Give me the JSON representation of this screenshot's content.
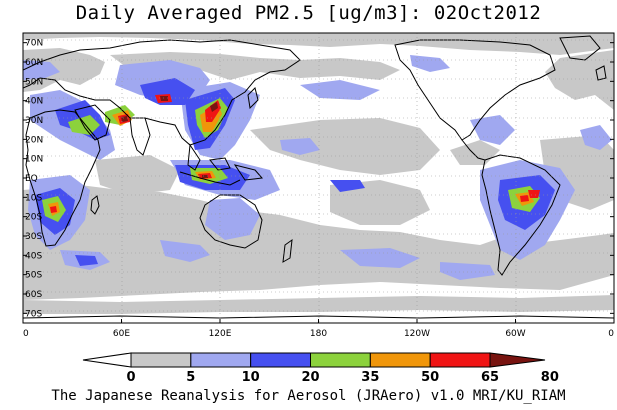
{
  "title": "Daily Averaged PM2.5 [ug/m3]: 02Oct2012",
  "credit": "The Japanese Reanalysis for Aerosol (JRAero) v1.0 MRI/KU_RIAM",
  "map": {
    "projection": "equirectangular",
    "lon_range": [
      0,
      360
    ],
    "lat_range": [
      -75,
      75
    ],
    "grid": "dotted",
    "lat_ticks": [
      {
        "lat": 70,
        "label": "70N"
      },
      {
        "lat": 60,
        "label": "60N"
      },
      {
        "lat": 50,
        "label": "50N"
      },
      {
        "lat": 40,
        "label": "40N"
      },
      {
        "lat": 30,
        "label": "30N"
      },
      {
        "lat": 20,
        "label": "20N"
      },
      {
        "lat": 10,
        "label": "10N"
      },
      {
        "lat": 0,
        "label": "EQ"
      },
      {
        "lat": -10,
        "label": "10S"
      },
      {
        "lat": -20,
        "label": "20S"
      },
      {
        "lat": -30,
        "label": "30S"
      },
      {
        "lat": -40,
        "label": "40S"
      },
      {
        "lat": -50,
        "label": "50S"
      },
      {
        "lat": -60,
        "label": "60S"
      },
      {
        "lat": -70,
        "label": "70S"
      }
    ],
    "lon_ticks": [
      {
        "lon": 0,
        "label": "0"
      },
      {
        "lon": 60,
        "label": "60E"
      },
      {
        "lon": 120,
        "label": "120E"
      },
      {
        "lon": 180,
        "label": "180"
      },
      {
        "lon": 240,
        "label": "120W"
      },
      {
        "lon": 300,
        "label": "60W"
      },
      {
        "lon": 360,
        "label": "0"
      }
    ]
  },
  "colorbar": {
    "levels": [
      "0",
      "5",
      "10",
      "20",
      "35",
      "50",
      "65",
      "80"
    ],
    "colors": [
      "#ffffff",
      "#c8c8c8",
      "#a0a8f0",
      "#4650f0",
      "#8cd23c",
      "#f0960a",
      "#f01414",
      "#781410"
    ]
  },
  "colors": {
    "l1": "#c8c8c8",
    "l2": "#a0a8f0",
    "l3": "#4650f0",
    "l4": "#8cd23c",
    "l5": "#f0960a",
    "l6": "#f01414",
    "l7": "#781410"
  }
}
